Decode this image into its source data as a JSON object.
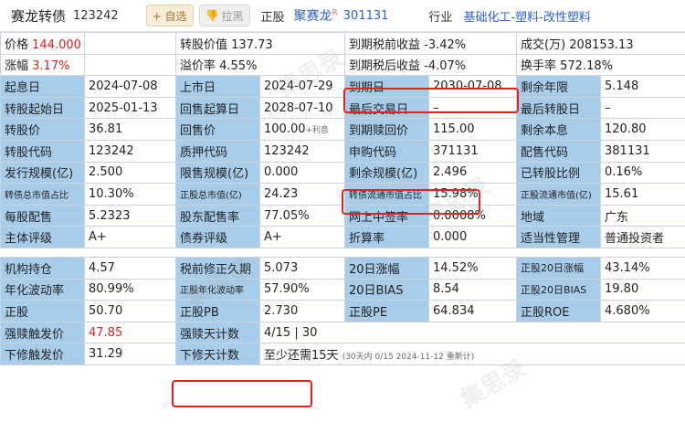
{
  "header": {
    "title": "赛龙转债",
    "code": "123242",
    "fav_button": "+ 自选",
    "black_button": "拉黑",
    "stock_label": "正股",
    "stock_name": "聚赛龙",
    "stock_sup": "R",
    "stock_code": "301131",
    "industry_label": "行业",
    "industry_value": "基础化工-塑料-改性塑料"
  },
  "grid": {
    "r1": {
      "c1": "价格",
      "v1": "144.000",
      "c2": "转股价值 137.73",
      "c3": "到期税前收益 -3.42%",
      "c4": "成交(万) 208153.13"
    },
    "r2": {
      "c1": "涨幅",
      "v1": "3.17%",
      "c2": "溢价率 4.55%",
      "c3": "到期税后收益 -4.07%",
      "c4": "换手率 572.18%"
    },
    "r3": {
      "k1": "起息日",
      "v1": "2024-07-08",
      "k2": "上市日",
      "v2": "2024-07-29",
      "k3": "到期日",
      "v3": "2030-07-08",
      "k4": "剩余年限",
      "v4": "5.148"
    },
    "r4": {
      "k1": "转股起始日",
      "v1": "2025-01-13",
      "k2": "回售起算日",
      "v2": "2028-07-10",
      "k3": "最后交易日",
      "v3": "–",
      "k4": "最后转股日",
      "v4": "–"
    },
    "r5": {
      "k1": "转股价",
      "v1": "36.81",
      "k2": "回售价",
      "v2": "100.00",
      "v2b": "+利息",
      "k3": "到期赎回价",
      "v3": "115.00",
      "k4": "剩余本息",
      "v4": "120.80"
    },
    "r6": {
      "k1": "转股代码",
      "v1": "123242",
      "k2": "质押代码",
      "v2": "123242",
      "k3": "申购代码",
      "v3": "371131",
      "k4": "配售代码",
      "v4": "381131"
    },
    "r7": {
      "k1": "发行规模(亿)",
      "v1": "2.500",
      "k2": "限售规模(亿)",
      "v2": "0.000",
      "k3": "剩余规模(亿)",
      "v3": "2.496",
      "k4": "已转股比例",
      "v4": "0.16%"
    },
    "r8": {
      "k1": "转债总市值占比",
      "v1": "10.30%",
      "k2": "正股总市值(亿)",
      "v2": "24.23",
      "k3": "转债流通市值占比",
      "v3": "15.98%",
      "k4": "正股流通市值(亿)",
      "v4": "15.61"
    },
    "r9": {
      "k1": "每股配售",
      "v1": "5.2323",
      "k2": "股东配售率",
      "v2": "77.05%",
      "k3": "网上中签率",
      "v3": "0.0008%",
      "k4": "地域",
      "v4": "广东"
    },
    "r10": {
      "k1": "主体评级",
      "v1": "A+",
      "k2": "债券评级",
      "v2": "A+",
      "k3": "折算率",
      "v3": "0.000",
      "k4": "适当性管理",
      "v4": "普通投资者"
    }
  },
  "grid2": {
    "s1": {
      "k1": "机构持仓",
      "v1": "4.57",
      "k2": "税前修正久期",
      "v2": "5.073",
      "k3": "20日涨幅",
      "v3": "14.52%",
      "k4": "正股20日涨幅",
      "v4": "43.14%"
    },
    "s2": {
      "k1": "年化波动率",
      "v1": "80.99%",
      "k2": "正股年化波动率",
      "v2": "57.90%",
      "k3": "20日BIAS",
      "v3": "8.54",
      "k4": "正股20日BIAS",
      "v4": "19.80"
    },
    "s3": {
      "k1": "正股",
      "v1": "50.70",
      "k2": "正股PB",
      "v2": "2.730",
      "k3": "正股PE",
      "v3": "64.834",
      "k4": "正股ROE",
      "v4": "4.680%"
    },
    "s4": {
      "k1": "强赎触发价",
      "v1": "47.85",
      "k2": "强赎天计数",
      "v2": "4/15 | 30"
    },
    "s5": {
      "k1": "下修触发价",
      "v1": "31.29",
      "k2": "下修天计数",
      "v2": "至少还需15天",
      "v2b": "(30天内 0/15   2024-11-12 重新计)"
    }
  },
  "watermark": "集思录"
}
